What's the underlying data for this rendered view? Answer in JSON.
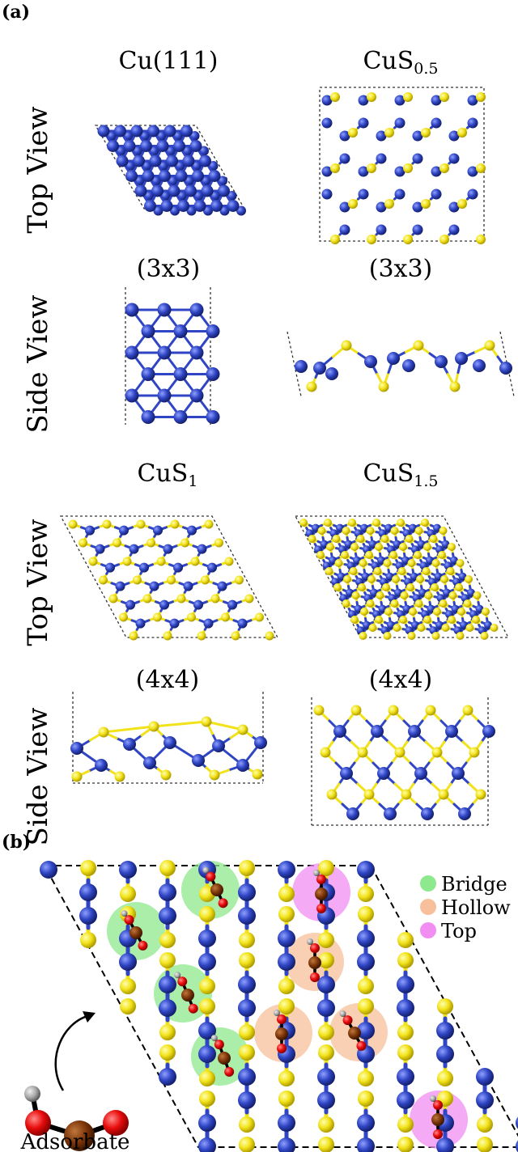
{
  "figure": {
    "panel_a": "(a)",
    "panel_b": "(b)",
    "row_labels": {
      "top": "Top View",
      "side": "Side View"
    },
    "structures": [
      {
        "id": "cu111",
        "name": "Cu(111)",
        "supercell": "(3x3)"
      },
      {
        "id": "cus05",
        "name_base": "CuS",
        "name_sub": "0.5",
        "supercell": "(3x3)"
      },
      {
        "id": "cus1",
        "name_base": "CuS",
        "name_sub": "1",
        "supercell": "(4x4)"
      },
      {
        "id": "cus15",
        "name_base": "CuS",
        "name_sub": "1.5",
        "supercell": "(4x4)"
      }
    ],
    "legend": [
      {
        "label": "Bridge",
        "color": "#8ee88e"
      },
      {
        "label": "Hollow",
        "color": "#f7c09a"
      },
      {
        "label": "Top",
        "color": "#f28ef2"
      }
    ],
    "adsorbate_label": "Adsorbate",
    "colors": {
      "copper": "#2f45c4",
      "sulfur": "#f2e21a",
      "carbon": "#7a3408",
      "oxygen": "#e80c0c",
      "hydrogen": "#a6a6a6"
    }
  }
}
